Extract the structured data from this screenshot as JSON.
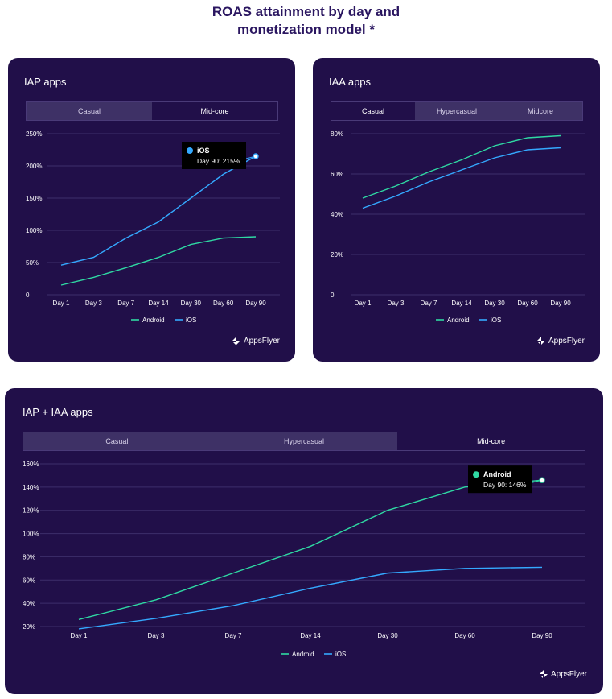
{
  "title_line1": "ROAS attainment by day and",
  "title_line2": "monetization model *",
  "brand": "AppsFlyer",
  "colors": {
    "android": "#2fd9a3",
    "ios": "#34a9ff",
    "card_bg": "#210f49",
    "tab_bg": "#3e3166"
  },
  "charts": [
    {
      "id": "iap",
      "title": "IAP apps",
      "tabs": [
        {
          "label": "Casual",
          "active": false
        },
        {
          "label": "Mid-core",
          "active": true
        }
      ]
    },
    {
      "id": "iaa",
      "title": "IAA apps",
      "tabs": [
        {
          "label": "Casual",
          "active": true
        },
        {
          "label": "Hypercasual",
          "active": false
        },
        {
          "label": "Midcore",
          "active": false
        }
      ]
    },
    {
      "id": "combo",
      "title": "IAP + IAA apps",
      "tabs": [
        {
          "label": "Casual",
          "active": false
        },
        {
          "label": "Hypercasual",
          "active": false
        },
        {
          "label": "Mid-core",
          "active": true
        }
      ]
    }
  ],
  "chart_data": [
    {
      "type": "line",
      "title": "IAP apps",
      "categories": [
        "Day 1",
        "Day 3",
        "Day 7",
        "Day 14",
        "Day 30",
        "Day 60",
        "Day 90"
      ],
      "yticks": [
        "0",
        "50%",
        "100%",
        "150%",
        "200%",
        "250%"
      ],
      "ylim": [
        0,
        250
      ],
      "series": [
        {
          "name": "Android",
          "values": [
            15,
            27,
            42,
            58,
            78,
            88,
            90
          ]
        },
        {
          "name": "iOS",
          "values": [
            46,
            58,
            88,
            113,
            150,
            187,
            215
          ]
        }
      ],
      "legend": [
        "Android",
        "iOS"
      ],
      "legend_position": "bottom",
      "tooltip": {
        "series": "iOS",
        "title": "iOS",
        "text": "Day 90: 215%"
      }
    },
    {
      "type": "line",
      "title": "IAA apps",
      "categories": [
        "Day 1",
        "Day 3",
        "Day 7",
        "Day 14",
        "Day 30",
        "Day 60",
        "Day 90"
      ],
      "yticks": [
        "0",
        "20%",
        "40%",
        "60%",
        "80%"
      ],
      "ylim": [
        0,
        80
      ],
      "series": [
        {
          "name": "Android",
          "values": [
            48,
            54,
            61,
            67,
            74,
            78,
            79
          ]
        },
        {
          "name": "iOS",
          "values": [
            43,
            49,
            56,
            62,
            68,
            72,
            73
          ]
        }
      ],
      "legend": [
        "Android",
        "iOS"
      ],
      "legend_position": "bottom"
    },
    {
      "type": "line",
      "title": "IAP + IAA apps",
      "categories": [
        "Day 1",
        "Day 3",
        "Day 7",
        "Day 14",
        "Day 30",
        "Day 60",
        "Day 90"
      ],
      "yticks": [
        "20%",
        "40%",
        "60%",
        "80%",
        "100%",
        "120%",
        "140%",
        "160%"
      ],
      "ylim": [
        20,
        160
      ],
      "series": [
        {
          "name": "Android",
          "values": [
            26,
            43,
            66,
            89,
            120,
            140,
            146
          ]
        },
        {
          "name": "iOS",
          "values": [
            18,
            27,
            38,
            53,
            66,
            70,
            71
          ]
        }
      ],
      "legend": [
        "Android",
        "iOS"
      ],
      "legend_position": "bottom",
      "tooltip": {
        "series": "Android",
        "title": "Android",
        "text": "Day 90: 146%"
      }
    }
  ]
}
